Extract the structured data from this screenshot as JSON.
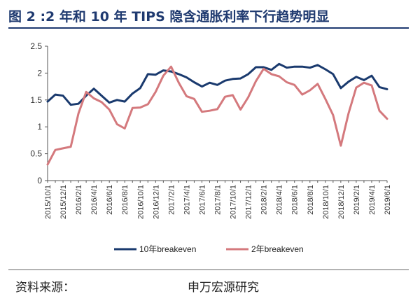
{
  "title": "图 2 :2 年和 10 年 TIPS 隐含通胀利率下行趋势明显",
  "source": {
    "label": "资料来源：",
    "value": "申万宏源研究"
  },
  "chart_data": {
    "type": "line",
    "x": [
      "2015/10/1",
      "2015/11/1",
      "2015/12/1",
      "2016/1/1",
      "2016/2/1",
      "2016/3/1",
      "2016/4/1",
      "2016/5/1",
      "2016/6/1",
      "2016/7/1",
      "2016/8/1",
      "2016/9/1",
      "2016/10/1",
      "2016/11/1",
      "2016/12/1",
      "2017/1/1",
      "2017/2/1",
      "2017/3/1",
      "2017/4/1",
      "2017/5/1",
      "2017/6/1",
      "2017/7/1",
      "2017/8/1",
      "2017/9/1",
      "2017/10/1",
      "2017/11/1",
      "2017/12/1",
      "2018/1/1",
      "2018/2/1",
      "2018/3/1",
      "2018/4/1",
      "2018/5/1",
      "2018/6/1",
      "2018/7/1",
      "2018/8/1",
      "2018/9/1",
      "2018/10/1",
      "2018/11/1",
      "2018/12/1",
      "2019/1/1",
      "2019/2/1",
      "2019/3/1",
      "2019/4/1",
      "2019/5/1",
      "2019/6/1"
    ],
    "x_tick_labels": [
      "2015/10/1",
      "2015/12/1",
      "2016/2/1",
      "2016/4/1",
      "2016/6/1",
      "2016/8/1",
      "2016/10/1",
      "2016/12/1",
      "2017/2/1",
      "2017/4/1",
      "2017/6/1",
      "2017/8/1",
      "2017/10/1",
      "2017/12/1",
      "2018/2/1",
      "2018/4/1",
      "2018/6/1",
      "2018/8/1",
      "2018/10/1",
      "2018/12/1",
      "2019/2/1",
      "2019/4/1",
      "2019/6/1"
    ],
    "series": [
      {
        "name": "10年breakeven",
        "color": "#1a3a6e",
        "values": [
          1.47,
          1.6,
          1.58,
          1.41,
          1.43,
          1.58,
          1.71,
          1.58,
          1.45,
          1.5,
          1.47,
          1.62,
          1.72,
          1.98,
          1.97,
          2.05,
          2.03,
          1.98,
          1.92,
          1.83,
          1.75,
          1.82,
          1.78,
          1.86,
          1.89,
          1.9,
          1.98,
          2.11,
          2.11,
          2.06,
          2.17,
          2.1,
          2.12,
          2.12,
          2.1,
          2.15,
          2.07,
          1.98,
          1.72,
          1.84,
          1.93,
          1.87,
          1.95,
          1.74,
          1.7
        ]
      },
      {
        "name": "2年breakeven",
        "color": "#d4797d",
        "values": [
          0.3,
          0.57,
          0.6,
          0.63,
          1.25,
          1.65,
          1.53,
          1.46,
          1.32,
          1.05,
          0.97,
          1.35,
          1.36,
          1.42,
          1.65,
          1.95,
          2.12,
          1.82,
          1.57,
          1.52,
          1.28,
          1.3,
          1.33,
          1.56,
          1.59,
          1.32,
          1.55,
          1.85,
          2.08,
          1.98,
          1.94,
          1.83,
          1.78,
          1.6,
          1.68,
          1.8,
          1.52,
          1.22,
          0.65,
          1.25,
          1.73,
          1.82,
          1.77,
          1.3,
          1.15
        ]
      }
    ],
    "y_ticks": [
      "0",
      "0.5",
      "1",
      "1.5",
      "2",
      "2.5"
    ],
    "ylim": [
      0,
      2.5
    ],
    "grid": false,
    "legend_position": "bottom"
  }
}
